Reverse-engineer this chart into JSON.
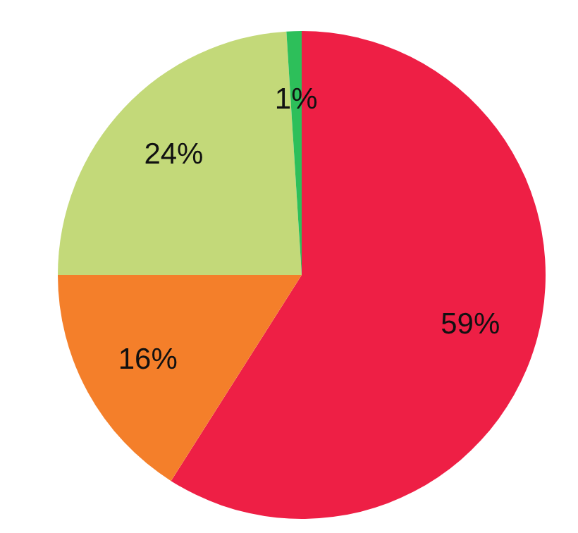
{
  "chart_data": {
    "type": "pie",
    "categories": [
      null,
      null,
      null,
      null
    ],
    "values": [
      59,
      16,
      24,
      1
    ],
    "colors": [
      "#ee1f45",
      "#f47f2a",
      "#c3d979",
      "#2dbf5a"
    ],
    "value_labels": [
      "59%",
      "16%",
      "24%",
      "1%"
    ]
  }
}
